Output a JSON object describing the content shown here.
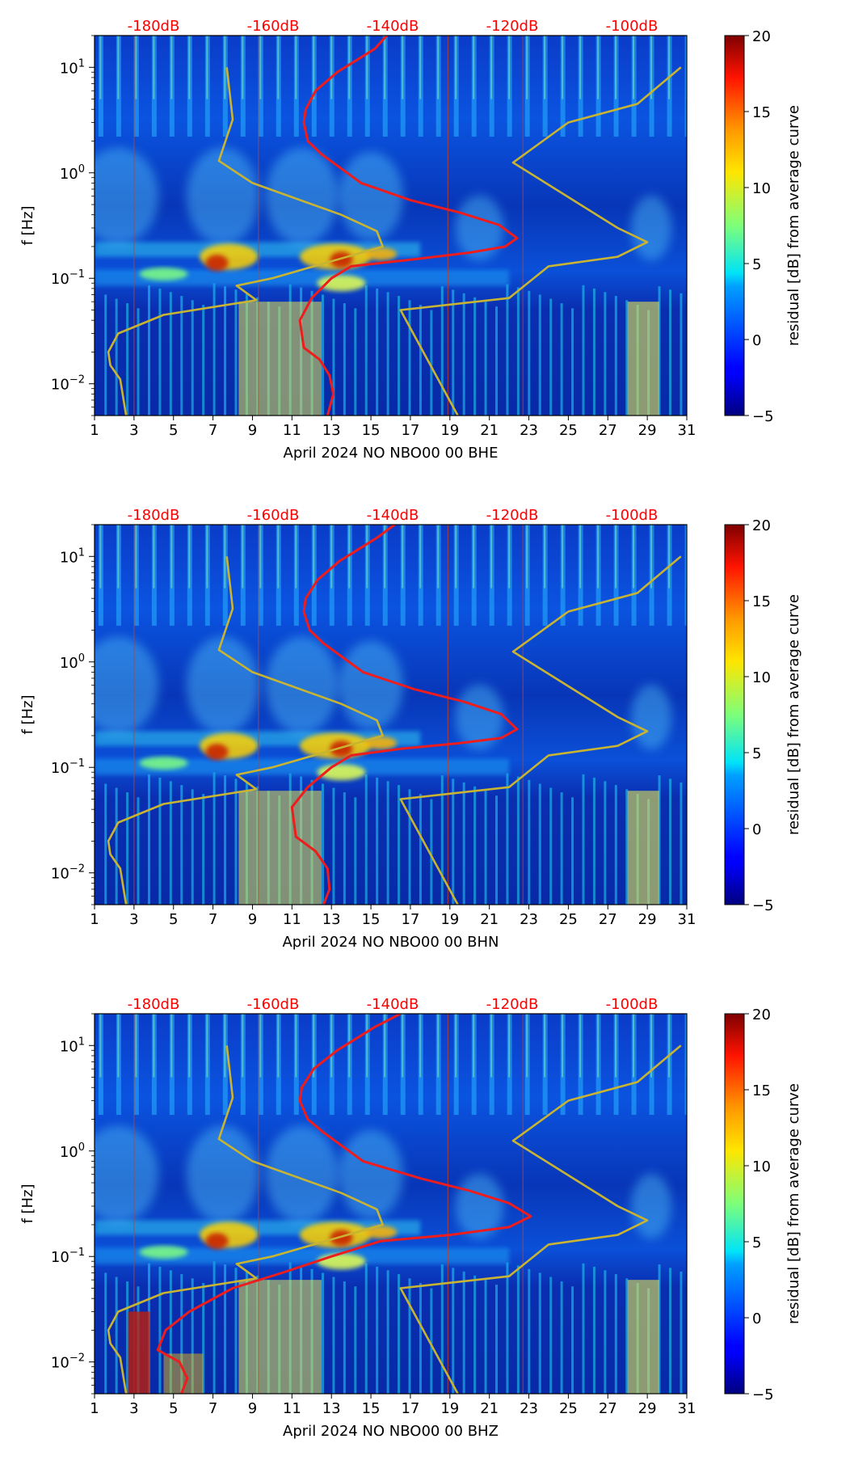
{
  "chart_data": [
    {
      "type": "heatmap",
      "channel": "BHE",
      "xlabel": "April 2024 NO NBO00 00 BHE",
      "ylabel": "f [Hz]",
      "x_ticks": [
        "1",
        "3",
        "5",
        "7",
        "9",
        "11",
        "13",
        "15",
        "17",
        "19",
        "21",
        "23",
        "25",
        "27",
        "29",
        "31"
      ],
      "xlim": [
        1,
        31
      ],
      "ylim": [
        0.005,
        20
      ],
      "y_scale": "log",
      "y_ticks": [
        {
          "value": 0.01,
          "base": "10",
          "exp": "−2"
        },
        {
          "value": 0.1,
          "base": "10",
          "exp": "−1"
        },
        {
          "value": 1,
          "base": "10",
          "exp": "0"
        },
        {
          "value": 10,
          "base": "10",
          "exp": "1"
        }
      ],
      "db_axis": {
        "labels": [
          "-180dB",
          "-160dB",
          "-140dB",
          "-120dB",
          "-100dB"
        ],
        "color": "#ff0000"
      },
      "colorbar": {
        "label": "residual [dB] from average curve",
        "min": -5,
        "max": 20,
        "ticks": [
          "20",
          "15",
          "10",
          "5",
          "0",
          "−5"
        ],
        "colormap": "jet"
      },
      "series": [
        {
          "name": "average PSD curve",
          "color": "#ee1c1c",
          "points": [
            [
              15.8,
              20
            ],
            [
              15.2,
              15
            ],
            [
              13.3,
              9
            ],
            [
              12.2,
              6
            ],
            [
              11.7,
              4
            ],
            [
              11.6,
              3
            ],
            [
              11.8,
              2
            ],
            [
              12.5,
              1.5
            ],
            [
              14.5,
              0.8
            ],
            [
              17,
              0.55
            ],
            [
              19.5,
              0.42
            ],
            [
              21.5,
              0.32
            ],
            [
              22.4,
              0.24
            ],
            [
              21.8,
              0.2
            ],
            [
              20,
              0.175
            ],
            [
              17,
              0.15
            ],
            [
              14,
              0.13
            ],
            [
              13,
              0.1
            ],
            [
              12,
              0.065
            ],
            [
              11.4,
              0.04
            ],
            [
              11.6,
              0.022
            ],
            [
              12.4,
              0.017
            ],
            [
              12.9,
              0.012
            ],
            [
              13.1,
              0.008
            ],
            [
              12.8,
              0.005
            ]
          ]
        },
        {
          "name": "noise model (NLNM/NHNM)",
          "color": "#c8b432",
          "points": [
            [
              2.6,
              0.005
            ],
            [
              2.3,
              0.011
            ],
            [
              1.8,
              0.015
            ],
            [
              1.7,
              0.02
            ],
            [
              2.2,
              0.03
            ],
            [
              4.5,
              0.045
            ],
            [
              9.2,
              0.062
            ],
            [
              8.2,
              0.085
            ],
            [
              10,
              0.1
            ],
            [
              15.6,
              0.2
            ],
            [
              15.3,
              0.28
            ],
            [
              13.5,
              0.4
            ],
            [
              9,
              0.8
            ],
            [
              7.3,
              1.3
            ],
            [
              8,
              3.2
            ],
            [
              7.7,
              10
            ]
          ]
        },
        {
          "name": "noise model (NLNM/NHNM)",
          "color": "#c8b432",
          "points": [
            [
              19.4,
              0.005
            ],
            [
              16.5,
              0.05
            ],
            [
              22,
              0.065
            ],
            [
              24,
              0.13
            ],
            [
              27.5,
              0.16
            ],
            [
              29,
              0.22
            ],
            [
              27.5,
              0.3
            ],
            [
              22.2,
              1.25
            ],
            [
              25,
              3
            ],
            [
              28.5,
              4.5
            ],
            [
              30.7,
              10
            ]
          ]
        }
      ]
    },
    {
      "type": "heatmap",
      "channel": "BHN",
      "xlabel": "April 2024 NO NBO00 00 BHN",
      "ylabel": "f [Hz]",
      "x_ticks": [
        "1",
        "3",
        "5",
        "7",
        "9",
        "11",
        "13",
        "15",
        "17",
        "19",
        "21",
        "23",
        "25",
        "27",
        "29",
        "31"
      ],
      "xlim": [
        1,
        31
      ],
      "ylim": [
        0.005,
        20
      ],
      "y_scale": "log",
      "y_ticks": [
        {
          "value": 0.01,
          "base": "10",
          "exp": "−2"
        },
        {
          "value": 0.1,
          "base": "10",
          "exp": "−1"
        },
        {
          "value": 1,
          "base": "10",
          "exp": "0"
        },
        {
          "value": 10,
          "base": "10",
          "exp": "1"
        }
      ],
      "db_axis": {
        "labels": [
          "-180dB",
          "-160dB",
          "-140dB",
          "-120dB",
          "-100dB"
        ],
        "color": "#ff0000"
      },
      "colorbar": {
        "label": "residual [dB] from average curve",
        "min": -5,
        "max": 20,
        "ticks": [
          "20",
          "15",
          "10",
          "5",
          "0",
          "−5"
        ],
        "colormap": "jet"
      },
      "series": [
        {
          "name": "average PSD curve",
          "color": "#ee1c1c",
          "points": [
            [
              16.2,
              20
            ],
            [
              15.3,
              15
            ],
            [
              13.4,
              9
            ],
            [
              12.3,
              6
            ],
            [
              11.7,
              4
            ],
            [
              11.6,
              3
            ],
            [
              11.9,
              2
            ],
            [
              12.6,
              1.5
            ],
            [
              14.6,
              0.8
            ],
            [
              17.2,
              0.55
            ],
            [
              19.7,
              0.42
            ],
            [
              21.6,
              0.32
            ],
            [
              22.4,
              0.23
            ],
            [
              21.6,
              0.19
            ],
            [
              19.5,
              0.17
            ],
            [
              16.5,
              0.15
            ],
            [
              14,
              0.13
            ],
            [
              13,
              0.1
            ],
            [
              11.8,
              0.065
            ],
            [
              11,
              0.042
            ],
            [
              11.2,
              0.022
            ],
            [
              12.2,
              0.016
            ],
            [
              12.8,
              0.011
            ],
            [
              12.9,
              0.007
            ],
            [
              12.6,
              0.005
            ]
          ]
        },
        {
          "name": "noise model (NLNM/NHNM)",
          "color": "#c8b432",
          "points": [
            [
              2.6,
              0.005
            ],
            [
              2.3,
              0.011
            ],
            [
              1.8,
              0.015
            ],
            [
              1.7,
              0.02
            ],
            [
              2.2,
              0.03
            ],
            [
              4.5,
              0.045
            ],
            [
              9.2,
              0.062
            ],
            [
              8.2,
              0.085
            ],
            [
              10,
              0.1
            ],
            [
              15.6,
              0.2
            ],
            [
              15.3,
              0.28
            ],
            [
              13.5,
              0.4
            ],
            [
              9,
              0.8
            ],
            [
              7.3,
              1.3
            ],
            [
              8,
              3.2
            ],
            [
              7.7,
              10
            ]
          ]
        },
        {
          "name": "noise model (NLNM/NHNM)",
          "color": "#c8b432",
          "points": [
            [
              19.4,
              0.005
            ],
            [
              16.5,
              0.05
            ],
            [
              22,
              0.065
            ],
            [
              24,
              0.13
            ],
            [
              27.5,
              0.16
            ],
            [
              29,
              0.22
            ],
            [
              27.5,
              0.3
            ],
            [
              22.2,
              1.25
            ],
            [
              25,
              3
            ],
            [
              28.5,
              4.5
            ],
            [
              30.7,
              10
            ]
          ]
        }
      ]
    },
    {
      "type": "heatmap",
      "channel": "BHZ",
      "xlabel": "April 2024 NO NBO00 00 BHZ",
      "ylabel": "f [Hz]",
      "x_ticks": [
        "1",
        "3",
        "5",
        "7",
        "9",
        "11",
        "13",
        "15",
        "17",
        "19",
        "21",
        "23",
        "25",
        "27",
        "29",
        "31"
      ],
      "xlim": [
        1,
        31
      ],
      "ylim": [
        0.005,
        20
      ],
      "y_scale": "log",
      "y_ticks": [
        {
          "value": 0.01,
          "base": "10",
          "exp": "−2"
        },
        {
          "value": 0.1,
          "base": "10",
          "exp": "−1"
        },
        {
          "value": 1,
          "base": "10",
          "exp": "0"
        },
        {
          "value": 10,
          "base": "10",
          "exp": "1"
        }
      ],
      "db_axis": {
        "labels": [
          "-180dB",
          "-160dB",
          "-140dB",
          "-120dB",
          "-100dB"
        ],
        "color": "#ff0000"
      },
      "colorbar": {
        "label": "residual [dB] from average curve",
        "min": -5,
        "max": 20,
        "ticks": [
          "20",
          "15",
          "10",
          "5",
          "0",
          "−5"
        ],
        "colormap": "jet"
      },
      "series": [
        {
          "name": "average PSD curve",
          "color": "#ee1c1c",
          "points": [
            [
              16.5,
              20
            ],
            [
              15.2,
              15
            ],
            [
              13.3,
              9
            ],
            [
              12.1,
              6
            ],
            [
              11.5,
              4
            ],
            [
              11.4,
              3
            ],
            [
              11.8,
              2
            ],
            [
              12.6,
              1.5
            ],
            [
              14.6,
              0.8
            ],
            [
              17.5,
              0.55
            ],
            [
              20,
              0.42
            ],
            [
              22,
              0.32
            ],
            [
              23.1,
              0.24
            ],
            [
              22,
              0.19
            ],
            [
              19,
              0.16
            ],
            [
              15.5,
              0.14
            ],
            [
              13,
              0.1
            ],
            [
              10.5,
              0.07
            ],
            [
              8,
              0.05
            ],
            [
              5.8,
              0.03
            ],
            [
              4.6,
              0.02
            ],
            [
              4.2,
              0.013
            ],
            [
              5.3,
              0.01
            ],
            [
              5.7,
              0.007
            ],
            [
              5.4,
              0.005
            ]
          ]
        },
        {
          "name": "noise model (NLNM/NHNM)",
          "color": "#c8b432",
          "points": [
            [
              2.6,
              0.005
            ],
            [
              2.3,
              0.011
            ],
            [
              1.8,
              0.015
            ],
            [
              1.7,
              0.02
            ],
            [
              2.2,
              0.03
            ],
            [
              4.5,
              0.045
            ],
            [
              9.2,
              0.062
            ],
            [
              8.2,
              0.085
            ],
            [
              10,
              0.1
            ],
            [
              15.6,
              0.2
            ],
            [
              15.3,
              0.28
            ],
            [
              13.5,
              0.4
            ],
            [
              9,
              0.8
            ],
            [
              7.3,
              1.3
            ],
            [
              8,
              3.2
            ],
            [
              7.7,
              10
            ]
          ]
        },
        {
          "name": "noise model (NLNM/NHNM)",
          "color": "#c8b432",
          "points": [
            [
              19.4,
              0.005
            ],
            [
              16.5,
              0.05
            ],
            [
              22,
              0.065
            ],
            [
              24,
              0.13
            ],
            [
              27.5,
              0.16
            ],
            [
              29,
              0.22
            ],
            [
              27.5,
              0.3
            ],
            [
              22.2,
              1.25
            ],
            [
              25,
              3
            ],
            [
              28.5,
              4.5
            ],
            [
              30.7,
              10
            ]
          ]
        }
      ]
    }
  ]
}
